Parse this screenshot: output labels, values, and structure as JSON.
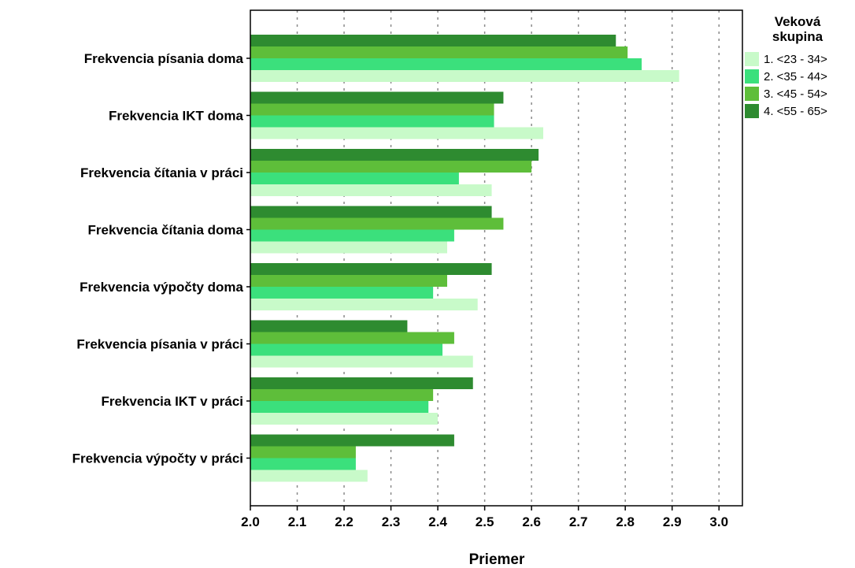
{
  "chart_data": {
    "type": "bar",
    "orientation": "horizontal",
    "categories": [
      "Frekvencia písania doma",
      "Frekvencia IKT doma",
      "Frekvencia čítania v práci",
      "Frekvencia čítania doma",
      "Frekvencia výpočty doma",
      "Frekvencia písania v práci",
      "Frekvencia IKT v práci",
      "Frekvencia výpočty v práci"
    ],
    "series": [
      {
        "name": "4. <55 - 65>",
        "color": "#2e8b30",
        "values": [
          2.78,
          2.54,
          2.615,
          2.515,
          2.515,
          2.335,
          2.475,
          2.435
        ]
      },
      {
        "name": "3. <45 - 54>",
        "color": "#5ebe3a",
        "values": [
          2.805,
          2.52,
          2.6,
          2.54,
          2.42,
          2.435,
          2.39,
          2.225
        ]
      },
      {
        "name": "2. <35 - 44>",
        "color": "#3be07c",
        "values": [
          2.835,
          2.52,
          2.445,
          2.435,
          2.39,
          2.41,
          2.38,
          2.225
        ]
      },
      {
        "name": "1. <23 - 34>",
        "color": "#c8fac9",
        "values": [
          2.915,
          2.625,
          2.515,
          2.42,
          2.485,
          2.475,
          2.4,
          2.25
        ]
      }
    ],
    "xlabel": "Priemer",
    "ylabel": "",
    "xlim": [
      2.0,
      3.05
    ],
    "xticks": [
      "2.0",
      "2.1",
      "2.2",
      "2.3",
      "2.4",
      "2.5",
      "2.6",
      "2.7",
      "2.8",
      "2.9",
      "3.0"
    ],
    "grid": true,
    "legend": {
      "title": [
        "Veková",
        "skupina"
      ],
      "placement": "top-right",
      "order": [
        "1. <23 - 34>",
        "2. <35 - 44>",
        "3. <45 - 54>",
        "4. <55 - 65>"
      ]
    }
  }
}
